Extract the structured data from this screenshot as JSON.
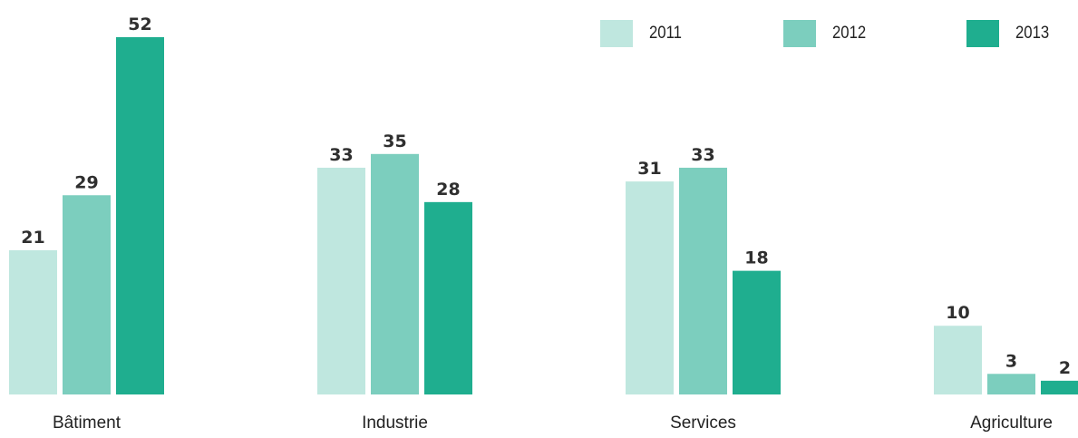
{
  "chart_data": {
    "type": "bar",
    "categories": [
      "Bâtiment",
      "Industrie",
      "Services",
      "Agriculture"
    ],
    "series": [
      {
        "name": "2011",
        "values": [
          21,
          33,
          31,
          10
        ],
        "color": "#bfe7df"
      },
      {
        "name": "2012",
        "values": [
          29,
          35,
          33,
          3
        ],
        "color": "#7ccebe"
      },
      {
        "name": "2013",
        "values": [
          52,
          28,
          18,
          2
        ],
        "color": "#1fae8f"
      }
    ],
    "data_labels": true,
    "legend_position": "top-right",
    "grid": false,
    "ylim": [
      0,
      52
    ]
  }
}
